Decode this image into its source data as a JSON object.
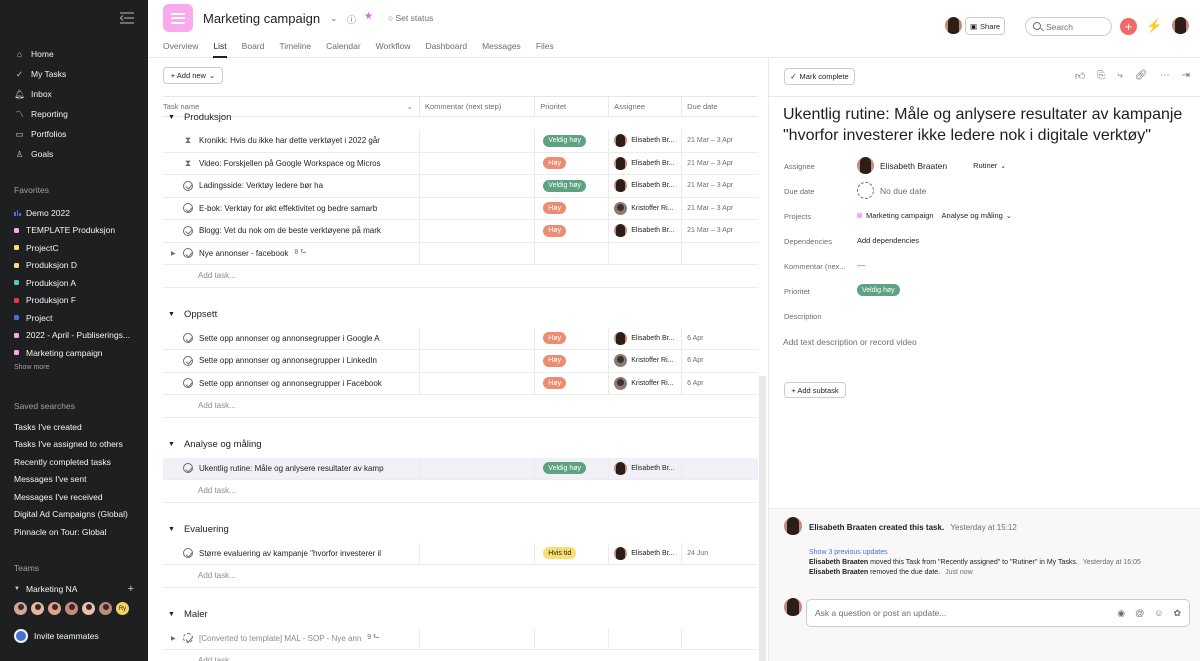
{
  "sidebar": {
    "nav": [
      {
        "label": "Home",
        "icon": "home-icon"
      },
      {
        "label": "My Tasks",
        "icon": "check-circle-icon"
      },
      {
        "label": "Inbox",
        "icon": "bell-icon"
      },
      {
        "label": "Reporting",
        "icon": "chart-line-icon"
      },
      {
        "label": "Portfolios",
        "icon": "folder-icon"
      },
      {
        "label": "Goals",
        "icon": "person-icon"
      }
    ],
    "favorites_title": "Favorites",
    "favorites": [
      {
        "label": "Demo 2022",
        "color": "#4573d2",
        "type": "dashboard"
      },
      {
        "label": "TEMPLATE Produksjon",
        "color": "#f9aaef"
      },
      {
        "label": "ProjectC",
        "color": "#f8df72"
      },
      {
        "label": "Produksjon D",
        "color": "#f8df72"
      },
      {
        "label": "Produksjon A",
        "color": "#4ecbc4"
      },
      {
        "label": "Produksjon F",
        "color": "#e8384f"
      },
      {
        "label": "Project",
        "color": "#4573d2"
      },
      {
        "label": "2022 - April - Publiserings...",
        "color": "#f9aaef"
      },
      {
        "label": "Marketing campaign",
        "color": "#f9aaef"
      }
    ],
    "show_more": "Show more",
    "saved_title": "Saved searches",
    "saved": [
      "Tasks I've created",
      "Tasks I've assigned to others",
      "Recently completed tasks",
      "Messages I've sent",
      "Messages I've received",
      "Digital Ad Campaigns (Global)",
      "Pinnacle on Tour: Global"
    ],
    "teams_title": "Teams",
    "team_name": "Marketing NA",
    "team_extra_initials": "Ry",
    "invite": "Invite teammates"
  },
  "header": {
    "title": "Marketing campaign",
    "set_status": "Set status",
    "tabs": [
      "Overview",
      "List",
      "Board",
      "Timeline",
      "Calendar",
      "Workflow",
      "Dashboard",
      "Messages",
      "Files"
    ],
    "active_tab": "List",
    "share": "Share",
    "search_placeholder": "Search"
  },
  "list": {
    "add_new": "+ Add new",
    "columns": [
      "Task name",
      "Kommentar (next step)",
      "Prioritet",
      "Assignee",
      "Due date"
    ],
    "add_task": "Add task...",
    "sections": [
      {
        "name": "Produksjon",
        "tasks": [
          {
            "name": "Kronikk: Hvis du ikke har dette verktøyet i 2022 går",
            "kind": "milestone",
            "priority": "Veldig høy",
            "pcolor": "green",
            "assignee": "Elisabeth Br...",
            "due": "21 Mar – 3 Apr",
            "avatar": "f"
          },
          {
            "name": "Video: Forskjellen på Google Workspace og Micros",
            "kind": "milestone",
            "priority": "Høy",
            "pcolor": "orange",
            "assignee": "Elisabeth Br...",
            "due": "21 Mar – 3 Apr",
            "avatar": "f"
          },
          {
            "name": "Ladingsside: Verktøy ledere bør ha",
            "kind": "task",
            "priority": "Veldig høy",
            "pcolor": "green",
            "assignee": "Elisabeth Br...",
            "due": "21 Mar – 3 Apr",
            "avatar": "f"
          },
          {
            "name": "E-bok: Verktøy for økt effektivitet og bedre samarb",
            "kind": "task",
            "priority": "Høy",
            "pcolor": "orange",
            "assignee": "Kristoffer Ri...",
            "due": "21 Mar – 3 Apr",
            "avatar": "m"
          },
          {
            "name": "Blogg: Vet du nok om de beste verktøyene på mark",
            "kind": "task",
            "priority": "Høy",
            "pcolor": "orange",
            "assignee": "Elisabeth Br...",
            "due": "21 Mar – 3 Apr",
            "avatar": "f"
          },
          {
            "name": "Nye annonser - facebook",
            "kind": "task",
            "expand": true,
            "subcount": "8",
            "priority": "",
            "assignee": "",
            "due": ""
          }
        ]
      },
      {
        "name": "Oppsett",
        "tasks": [
          {
            "name": "Sette opp annonser og annonsegrupper i Google A",
            "kind": "task",
            "priority": "Høy",
            "pcolor": "orange",
            "assignee": "Elisabeth Br...",
            "due": "6 Apr",
            "avatar": "f"
          },
          {
            "name": "Sette opp annonser og annonsegrupper i LinkedIn",
            "kind": "task",
            "priority": "Høy",
            "pcolor": "orange",
            "assignee": "Kristoffer Ri...",
            "due": "6 Apr",
            "avatar": "m"
          },
          {
            "name": "Sette opp annonser og annonsegrupper i Facebook",
            "kind": "task",
            "priority": "Høy",
            "pcolor": "orange",
            "assignee": "Kristoffer Ri...",
            "due": "6 Apr",
            "avatar": "m"
          }
        ]
      },
      {
        "name": "Analyse og måling",
        "tasks": [
          {
            "name": "Ukentlig rutine: Måle og anlysere resultater av kamp",
            "kind": "task",
            "selected": true,
            "priority": "Veldig høy",
            "pcolor": "green",
            "assignee": "Elisabeth Br...",
            "due": "",
            "avatar": "f"
          }
        ]
      },
      {
        "name": "Evaluering",
        "tasks": [
          {
            "name": "Større evaluering av kampanje \"hvorfor investerer il",
            "kind": "task",
            "priority": "Hvis tid",
            "pcolor": "yellow",
            "assignee": "Elisabeth Br...",
            "due": "24 Jun",
            "avatar": "f"
          }
        ]
      },
      {
        "name": "Maler",
        "tasks": [
          {
            "name": "[Converted to template] MAL - SOP - Nye ann",
            "kind": "template",
            "expand": true,
            "subcount": "9",
            "priority": "",
            "assignee": "",
            "due": ""
          }
        ]
      }
    ]
  },
  "detail": {
    "mark_complete": "Mark complete",
    "title": "Ukentlig rutine: Måle og anlysere resultater av kampanje \"hvorfor investerer ikke ledere nok i digitale verktøy\"",
    "fields": {
      "assignee_label": "Assignee",
      "assignee": "Elisabeth Braaten",
      "assignee_section": "Rutiner",
      "due_label": "Due date",
      "due": "No due date",
      "projects_label": "Projects",
      "project": "Marketing campaign",
      "project_section": "Analyse og måling",
      "deps_label": "Dependencies",
      "deps": "Add dependencies",
      "komm_label": "Kommentar (nex...",
      "komm": "—",
      "prio_label": "Prioritet",
      "prio": "Veldig høy",
      "desc_label": "Description",
      "desc_placeholder": "Add text description or record video"
    },
    "add_subtask": "+ Add subtask",
    "activity": {
      "creator": "Elisabeth Braaten created this task.",
      "created_time": "Yesterday at 15:12",
      "show_prev": "Show 3 previous updates",
      "line1_who": "Elisabeth Braaten",
      "line1_what": "moved this Task from \"Recently assigned\" to \"Rutiner\" in My Tasks.",
      "line1_time": "Yesterday at 16:05",
      "line2_who": "Elisabeth Braaten",
      "line2_what": "removed the due date.",
      "line2_time": "Just now"
    },
    "comment_placeholder": "Ask a question or post an update..."
  }
}
